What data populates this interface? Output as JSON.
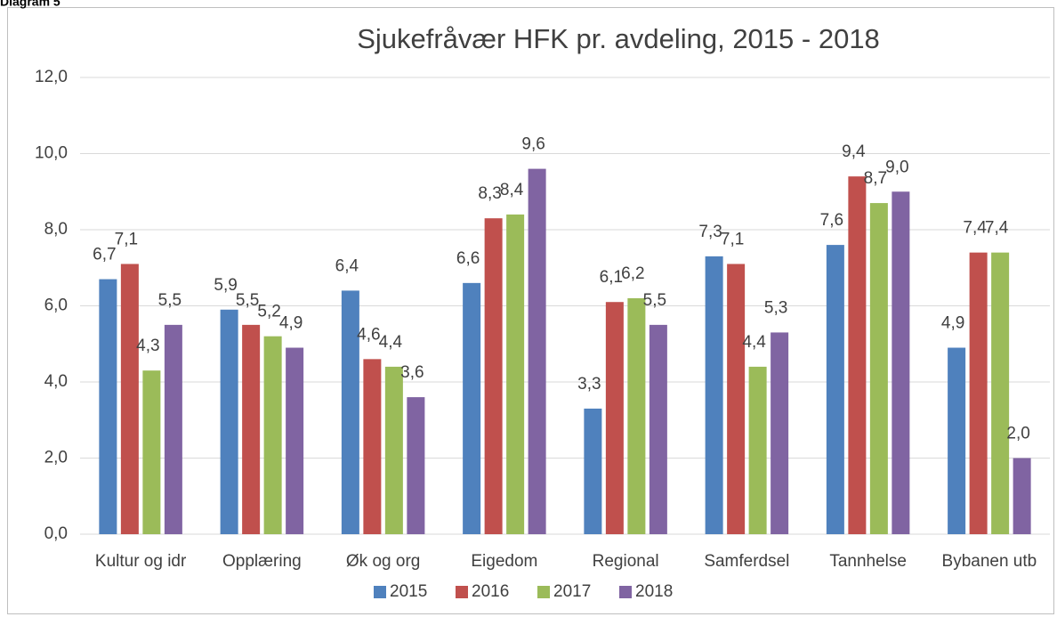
{
  "heading": "Diagram 5",
  "chart_data": {
    "type": "bar",
    "title": "Sjukefråvær HFK pr. avdeling, 2015 - 2018",
    "categories": [
      "Kultur og idr",
      "Opplæring",
      "Øk og org",
      "Eigedom",
      "Regional",
      "Samferdsel",
      "Tannhelse",
      "Bybanen utb"
    ],
    "series": [
      {
        "name": "2015",
        "color": "#4f81bd",
        "values": [
          6.7,
          5.9,
          6.4,
          6.6,
          3.3,
          7.3,
          7.6,
          4.9
        ],
        "value_labels": [
          "6,7",
          "5,9",
          "6,4",
          "6,6",
          "3,3",
          "7,3",
          "7,6",
          "4,9"
        ]
      },
      {
        "name": "2016",
        "color": "#c0504d",
        "values": [
          7.1,
          5.5,
          4.6,
          8.3,
          6.1,
          7.1,
          9.4,
          7.4
        ],
        "value_labels": [
          "7,1",
          "5,5",
          "4,6",
          "8,3",
          "6,1",
          "7,1",
          "9,4",
          "7,4"
        ]
      },
      {
        "name": "2017",
        "color": "#9bbb59",
        "values": [
          4.3,
          5.2,
          4.4,
          8.4,
          6.2,
          4.4,
          8.7,
          7.4
        ],
        "value_labels": [
          "4,3",
          "5,2",
          "4,4",
          "8,4",
          "6,2",
          "4,4",
          "8,7",
          "7,4"
        ]
      },
      {
        "name": "2018",
        "color": "#8064a2",
        "values": [
          5.5,
          4.9,
          3.6,
          9.6,
          5.5,
          5.3,
          9.0,
          2.0
        ],
        "value_labels": [
          "5,5",
          "4,9",
          "3,6",
          "9,6",
          "5,5",
          "5,3",
          "9,0",
          "2,0"
        ]
      }
    ],
    "ylim": [
      0,
      12
    ],
    "yticks": [
      {
        "value": 0,
        "label": "0,0"
      },
      {
        "value": 2,
        "label": "2,0"
      },
      {
        "value": 4,
        "label": "4,0"
      },
      {
        "value": 6,
        "label": "6,0"
      },
      {
        "value": 8,
        "label": "8,0"
      },
      {
        "value": 10,
        "label": "10,0"
      },
      {
        "value": 12,
        "label": "12,0"
      }
    ],
    "grid": true,
    "legend": "bottom"
  }
}
